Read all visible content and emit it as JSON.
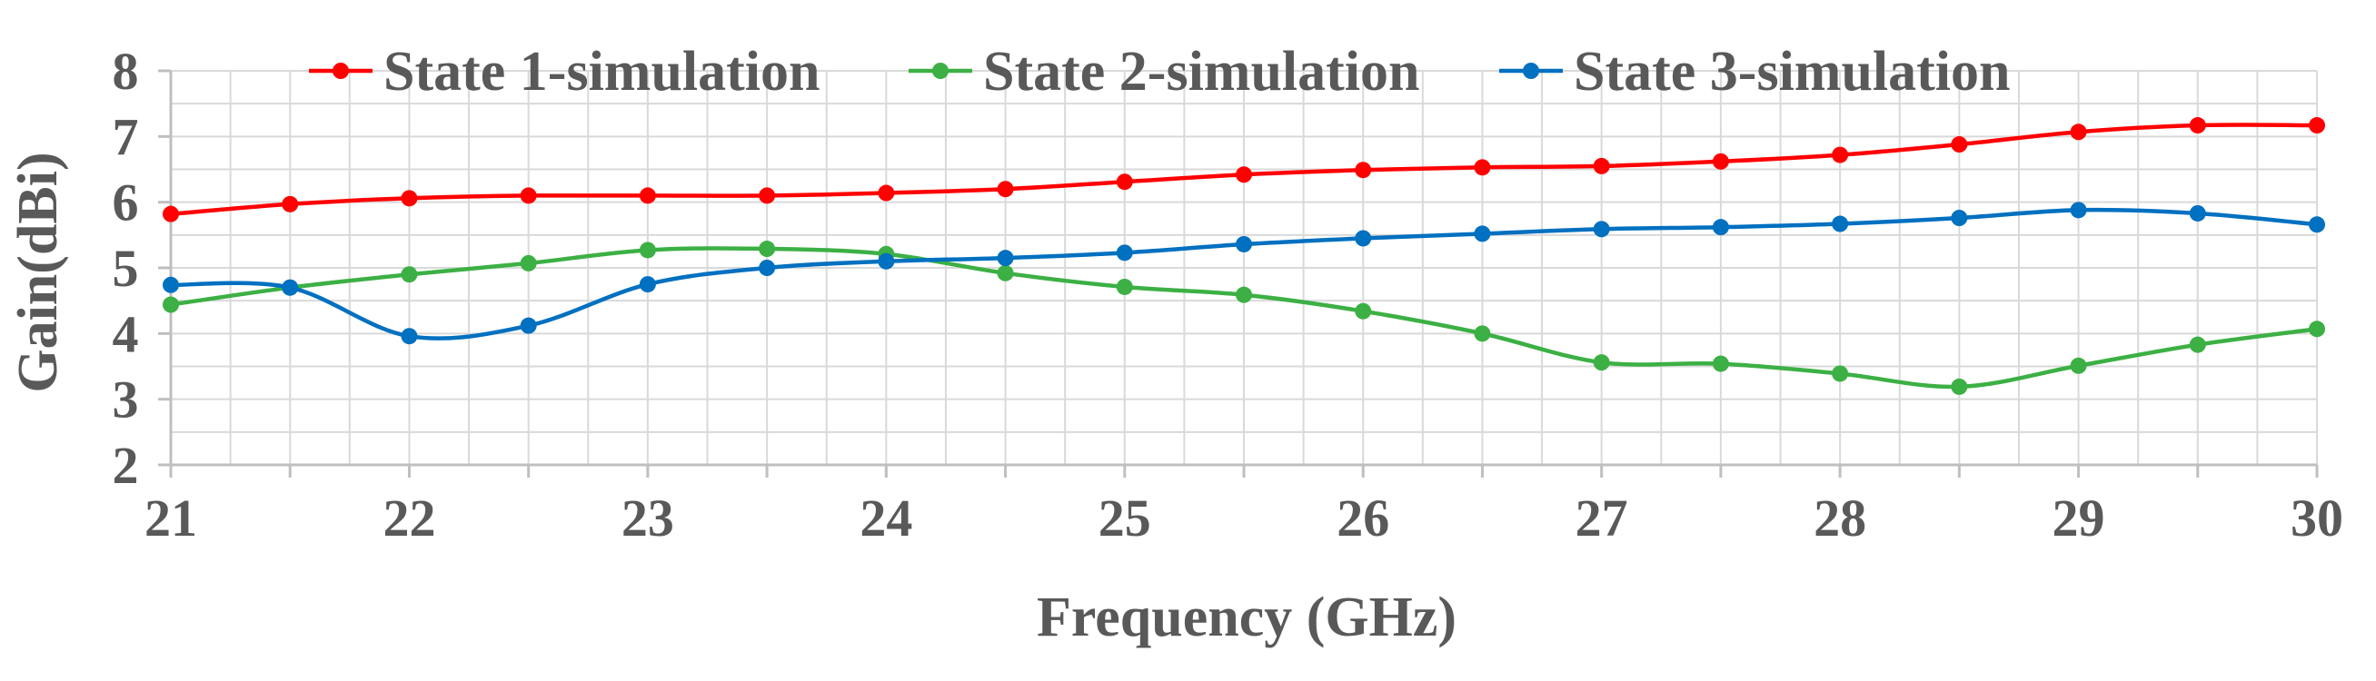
{
  "chart_data": {
    "type": "line",
    "title": "",
    "xlabel": "Frequency (GHz)",
    "ylabel": "Gain(dBi)",
    "xlim": [
      21,
      30
    ],
    "ylim": [
      2,
      8
    ],
    "x_ticks": [
      "21",
      "22",
      "23",
      "24",
      "25",
      "26",
      "27",
      "28",
      "29",
      "30"
    ],
    "y_ticks": [
      "2",
      "3",
      "4",
      "5",
      "6",
      "7",
      "8"
    ],
    "grid": true,
    "legend_position": "top",
    "x": [
      21,
      21.5,
      22,
      22.5,
      23,
      23.5,
      24,
      24.5,
      25,
      25.5,
      26,
      26.5,
      27,
      27.5,
      28,
      28.5,
      29,
      29.5,
      30
    ],
    "series": [
      {
        "name": "State 1-simulation",
        "color": "#ff0000",
        "values": [
          5.82,
          5.97,
          6.06,
          6.1,
          6.1,
          6.1,
          6.14,
          6.2,
          6.31,
          6.42,
          6.49,
          6.53,
          6.55,
          6.62,
          6.72,
          6.88,
          7.07,
          7.17,
          7.17
        ]
      },
      {
        "name": "State 2-simulation",
        "color": "#3cb044",
        "values": [
          4.44,
          4.7,
          4.9,
          5.07,
          5.27,
          5.29,
          5.21,
          4.92,
          4.71,
          4.59,
          4.34,
          4.0,
          3.56,
          3.54,
          3.39,
          3.19,
          3.51,
          3.83,
          4.07
        ]
      },
      {
        "name": "State 3-simulation",
        "color": "#0070c0",
        "values": [
          4.74,
          4.7,
          3.96,
          4.12,
          4.75,
          5.0,
          5.1,
          5.15,
          5.23,
          5.36,
          5.45,
          5.52,
          5.59,
          5.62,
          5.67,
          5.76,
          5.88,
          5.83,
          5.66
        ]
      }
    ]
  }
}
